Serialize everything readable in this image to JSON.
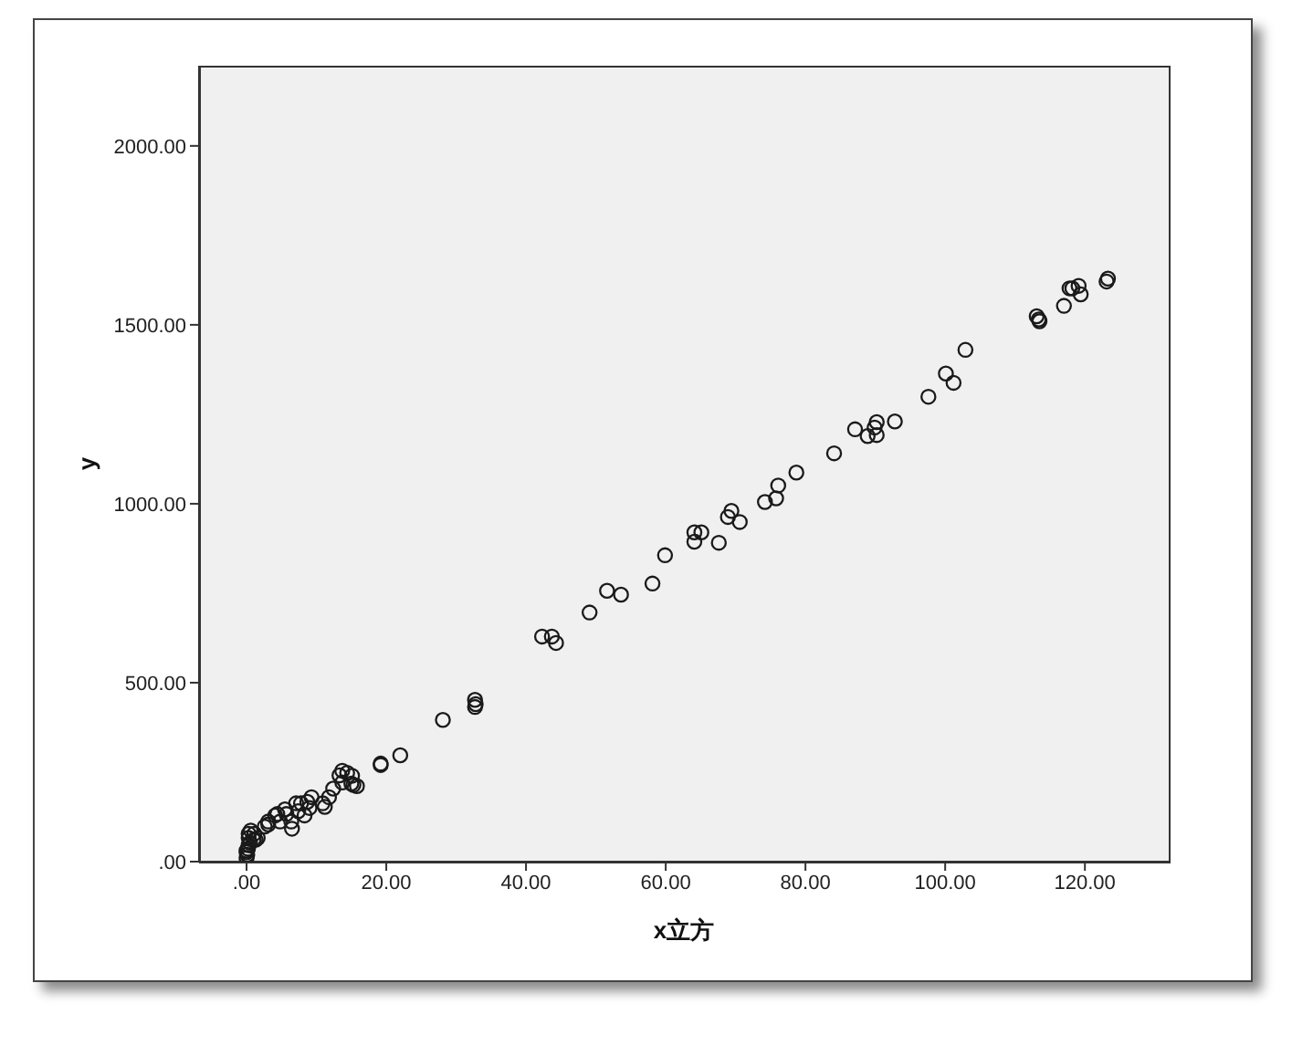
{
  "chart_data": {
    "type": "scatter",
    "xlabel": "x立方",
    "ylabel": "y",
    "color": "#1a1a1a",
    "marker": "circle",
    "xlim": [
      -6.8,
      132.0
    ],
    "ylim": [
      0,
      2224
    ],
    "xticks": [
      {
        "value": 0,
        "label": ".00"
      },
      {
        "value": 20,
        "label": "20.00"
      },
      {
        "value": 40,
        "label": "40.00"
      },
      {
        "value": 60,
        "label": "60.00"
      },
      {
        "value": 80,
        "label": "80.00"
      },
      {
        "value": 100,
        "label": "100.00"
      },
      {
        "value": 120,
        "label": "120.00"
      }
    ],
    "yticks": [
      {
        "value": 0,
        "label": ".00"
      },
      {
        "value": 500,
        "label": "500.00"
      },
      {
        "value": 1000,
        "label": "1000.00"
      },
      {
        "value": 1500,
        "label": "1500.00"
      },
      {
        "value": 2000,
        "label": "2000.00"
      }
    ],
    "x": [
      123.3,
      123.1,
      117.8,
      118.2,
      119.1,
      119.4,
      117.0,
      113.1,
      113.4,
      113.5,
      102.9,
      100.1,
      101.2,
      97.6,
      92.8,
      90.2,
      89.9,
      90.2,
      88.9,
      87.1,
      84.1,
      78.7,
      76.1,
      75.8,
      74.2,
      70.6,
      69.4,
      68.9,
      67.6,
      64.1,
      65.1,
      64.1,
      59.9,
      58.1,
      51.6,
      53.6,
      49.1,
      42.3,
      43.7,
      44.3,
      32.7,
      32.8,
      32.7,
      28.1,
      22.0,
      19.2,
      19.2,
      13.7,
      13.3,
      14.4,
      15.1,
      15.3,
      15.8,
      15.0,
      13.7,
      12.4,
      11.8,
      10.9,
      11.2,
      9.3,
      8.7,
      9.0,
      7.8,
      7.1,
      7.4,
      8.3,
      6.5,
      6.4,
      5.7,
      5.5,
      4.4,
      4.1,
      4.8,
      3.1,
      3.1,
      2.6,
      1.3,
      0.3,
      0.3,
      0.5,
      0.2,
      0.1,
      0.6,
      1.0,
      1.1,
      0.0,
      0.0,
      0.0,
      0.3,
      1.6
    ],
    "values": [
      1629,
      1621,
      1602,
      1602,
      1609,
      1585,
      1553,
      1524,
      1515,
      1510,
      1430,
      1364,
      1338,
      1299,
      1230,
      1228,
      1213,
      1192,
      1189,
      1208,
      1141,
      1087,
      1051,
      1015,
      1005,
      949,
      980,
      963,
      891,
      920,
      920,
      894,
      856,
      777,
      757,
      746,
      696,
      629,
      629,
      611,
      452,
      440,
      432,
      396,
      297,
      274,
      270,
      254,
      241,
      248,
      240,
      214,
      211,
      218,
      221,
      204,
      180,
      163,
      153,
      180,
      167,
      150,
      163,
      163,
      141,
      129,
      92,
      112,
      133,
      146,
      133,
      129,
      112,
      112,
      104,
      98,
      61,
      78,
      66,
      53,
      36,
      19,
      87,
      61,
      78,
      31,
      10,
      26,
      46,
      66
    ]
  }
}
